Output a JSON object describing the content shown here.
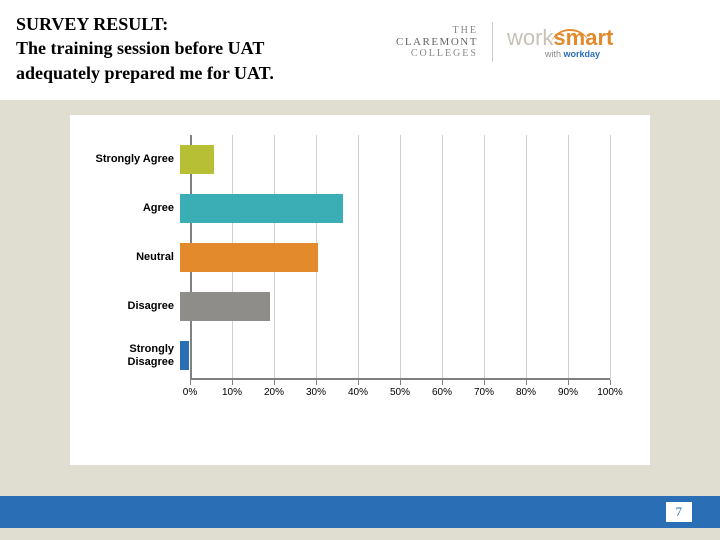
{
  "header": {
    "title_l1": "SURVEY RESULT:",
    "title_l2": "The training session before UAT",
    "title_l3": "adequately prepared me for UAT.",
    "title_color": "#000000",
    "title_fontsize": 18
  },
  "logos": {
    "claremont": {
      "l1": "THE",
      "l2": "CLAREMONT",
      "l3": "COLLEGES"
    },
    "worksmart": {
      "work": "work",
      "smart": "smart",
      "sub_with": "with ",
      "sub_wd": "workday",
      "accent": "#e38b2c"
    }
  },
  "chart": {
    "type": "bar-horizontal",
    "background_color": "#ffffff",
    "page_background": "#e0ddd1",
    "grid_color": "#d0d0d0",
    "axis_color": "#808080",
    "label_fontsize": 11,
    "tick_fontsize": 10,
    "xlim": [
      0,
      100
    ],
    "xtick_step": 10,
    "xtick_labels": [
      "0%",
      "10%",
      "20%",
      "30%",
      "40%",
      "50%",
      "60%",
      "70%",
      "80%",
      "90%",
      "100%"
    ],
    "categories": [
      {
        "label": "Strongly Agree",
        "value": 8,
        "color": "#b7bf34"
      },
      {
        "label": "Agree",
        "value": 38,
        "color": "#3aaeb4"
      },
      {
        "label": "Neutral",
        "value": 32,
        "color": "#e38b2c"
      },
      {
        "label": "Disagree",
        "value": 21,
        "color": "#8f8d89"
      },
      {
        "label": "Strongly Disagree",
        "value": 2,
        "color": "#2a6fb5"
      }
    ]
  },
  "footer": {
    "bar_color": "#2a6fb5",
    "page_number": "7",
    "page_number_color": "#2a6fb5"
  }
}
